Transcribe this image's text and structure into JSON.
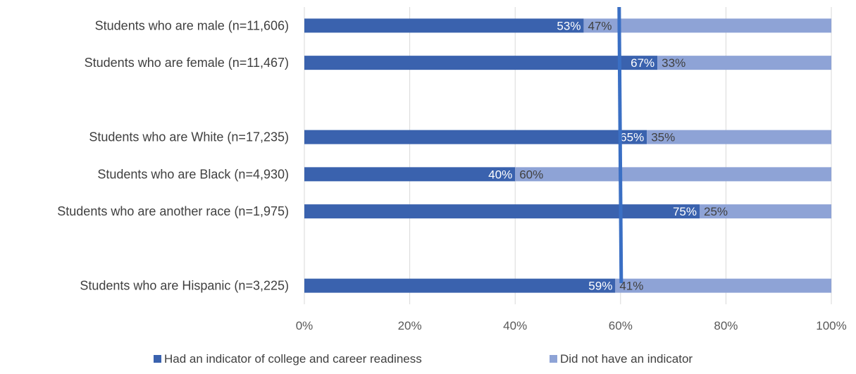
{
  "chart_data": {
    "type": "bar",
    "orientation": "horizontal",
    "stacked": "percent",
    "categories": [
      "Students who are male (n=11,606)",
      "Students who are female (n=11,467)",
      "",
      "Students who are White (n=17,235)",
      "Students who are Black (n=4,930)",
      "Students who are another race (n=1,975)",
      "",
      "Students who are Hispanic (n=3,225)"
    ],
    "series": [
      {
        "name": "Had an indicator of college and career readiness",
        "color": "#3a62ae",
        "values": [
          53,
          67,
          null,
          65,
          40,
          75,
          null,
          59
        ],
        "labels": [
          "53%",
          "67%",
          "",
          "65%",
          "40%",
          "75%",
          "",
          "59%"
        ]
      },
      {
        "name": "Did not have an indicator",
        "color": "#8ea3d6",
        "values": [
          47,
          33,
          null,
          35,
          60,
          25,
          null,
          41
        ],
        "labels": [
          "47%",
          "33%",
          "",
          "35%",
          "60%",
          "25%",
          "",
          "41%"
        ]
      }
    ],
    "xlim": [
      0,
      100
    ],
    "xticks": [
      0,
      20,
      40,
      60,
      80,
      100
    ],
    "xtick_labels": [
      "0%",
      "20%",
      "40%",
      "60%",
      "80%",
      "100%"
    ],
    "reference_line": {
      "value": 60,
      "color": "#3a6fc4"
    },
    "grid": true,
    "legend_position": "bottom"
  }
}
